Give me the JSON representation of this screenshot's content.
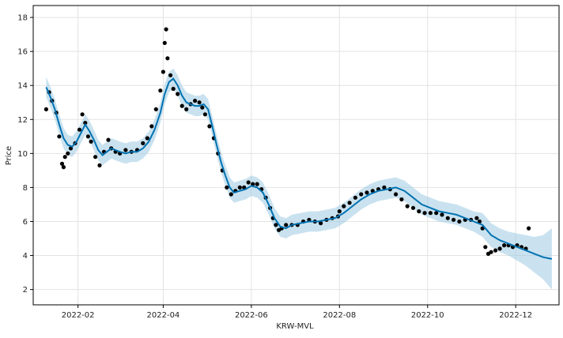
{
  "chart_data": {
    "type": "scatter",
    "title": "",
    "xlabel": "KRW-MVL",
    "ylabel": "Price",
    "grid": true,
    "x_ticks": [
      "2022-02",
      "2022-04",
      "2022-06",
      "2022-08",
      "2022-10",
      "2022-12"
    ],
    "y_ticks": [
      2,
      4,
      6,
      8,
      10,
      12,
      14,
      16,
      18
    ],
    "xlim": [
      "2022-01-01",
      "2022-12-31"
    ],
    "ylim": [
      1.1,
      18.7
    ],
    "colors": {
      "observed": "#000000",
      "forecast": "#0072B2",
      "interval": "#9ecae1",
      "grid": "#e3e3e3",
      "frame": "#000000"
    },
    "series": [
      {
        "kind": "observed-points",
        "x": [
          "2022-01-10",
          "2022-01-12",
          "2022-01-14",
          "2022-01-17",
          "2022-01-19",
          "2022-01-21",
          "2022-01-22",
          "2022-01-23",
          "2022-01-25",
          "2022-01-27",
          "2022-01-30",
          "2022-02-02",
          "2022-02-04",
          "2022-02-06",
          "2022-02-08",
          "2022-02-10",
          "2022-02-13",
          "2022-02-16",
          "2022-02-19",
          "2022-02-22",
          "2022-02-24",
          "2022-02-27",
          "2022-03-02",
          "2022-03-06",
          "2022-03-10",
          "2022-03-14",
          "2022-03-18",
          "2022-03-21",
          "2022-03-24",
          "2022-03-27",
          "2022-03-30",
          "2022-04-01",
          "2022-04-02",
          "2022-04-03",
          "2022-04-04",
          "2022-04-06",
          "2022-04-08",
          "2022-04-11",
          "2022-04-14",
          "2022-04-17",
          "2022-04-20",
          "2022-04-23",
          "2022-04-26",
          "2022-04-28",
          "2022-04-30",
          "2022-05-03",
          "2022-05-06",
          "2022-05-09",
          "2022-05-12",
          "2022-05-15",
          "2022-05-18",
          "2022-05-21",
          "2022-05-24",
          "2022-05-27",
          "2022-05-30",
          "2022-06-02",
          "2022-06-05",
          "2022-06-08",
          "2022-06-11",
          "2022-06-14",
          "2022-06-16",
          "2022-06-18",
          "2022-06-20",
          "2022-06-22",
          "2022-06-25",
          "2022-06-29",
          "2022-07-03",
          "2022-07-07",
          "2022-07-11",
          "2022-07-15",
          "2022-07-19",
          "2022-07-23",
          "2022-07-27",
          "2022-07-31",
          "2022-08-01",
          "2022-08-04",
          "2022-08-08",
          "2022-08-12",
          "2022-08-16",
          "2022-08-20",
          "2022-08-24",
          "2022-08-28",
          "2022-09-01",
          "2022-09-05",
          "2022-09-09",
          "2022-09-13",
          "2022-09-17",
          "2022-09-21",
          "2022-09-25",
          "2022-09-29",
          "2022-10-03",
          "2022-10-07",
          "2022-10-11",
          "2022-10-15",
          "2022-10-19",
          "2022-10-23",
          "2022-10-27",
          "2022-10-31",
          "2022-11-04",
          "2022-11-06",
          "2022-11-08",
          "2022-11-10",
          "2022-11-12",
          "2022-11-14",
          "2022-11-17",
          "2022-11-20",
          "2022-11-23",
          "2022-11-26",
          "2022-11-29",
          "2022-12-02",
          "2022-12-05",
          "2022-12-08",
          "2022-12-10"
        ],
        "y": [
          12.6,
          13.6,
          13.1,
          12.4,
          11.0,
          9.4,
          9.2,
          9.8,
          10.0,
          10.3,
          10.6,
          11.4,
          12.3,
          11.8,
          11.0,
          10.7,
          9.8,
          9.3,
          10.1,
          10.8,
          10.3,
          10.1,
          10.0,
          10.2,
          10.1,
          10.2,
          10.6,
          10.9,
          11.6,
          12.6,
          13.7,
          14.8,
          16.5,
          17.3,
          15.6,
          14.6,
          13.8,
          13.5,
          12.8,
          12.6,
          12.9,
          13.1,
          13.0,
          12.7,
          12.3,
          11.6,
          10.9,
          10.0,
          9.0,
          8.0,
          7.6,
          7.8,
          8.0,
          8.0,
          8.3,
          8.2,
          8.2,
          7.9,
          7.4,
          6.8,
          6.2,
          5.8,
          5.5,
          5.6,
          5.8,
          5.8,
          5.8,
          6.0,
          6.1,
          6.0,
          5.9,
          6.1,
          6.2,
          6.3,
          6.6,
          6.9,
          7.1,
          7.4,
          7.6,
          7.7,
          7.8,
          7.9,
          8.0,
          7.9,
          7.6,
          7.3,
          6.9,
          6.8,
          6.6,
          6.5,
          6.5,
          6.5,
          6.4,
          6.2,
          6.1,
          6.0,
          6.1,
          6.1,
          6.2,
          6.0,
          5.6,
          4.5,
          4.1,
          4.2,
          4.3,
          4.4,
          4.6,
          4.6,
          4.5,
          4.6,
          4.5,
          4.4,
          5.6
        ]
      },
      {
        "kind": "forecast-line",
        "x": [
          "2022-01-10",
          "2022-01-13",
          "2022-01-16",
          "2022-01-19",
          "2022-01-22",
          "2022-01-25",
          "2022-01-28",
          "2022-01-31",
          "2022-02-03",
          "2022-02-06",
          "2022-02-09",
          "2022-02-12",
          "2022-02-15",
          "2022-02-18",
          "2022-02-21",
          "2022-02-24",
          "2022-02-27",
          "2022-03-02",
          "2022-03-06",
          "2022-03-10",
          "2022-03-14",
          "2022-03-18",
          "2022-03-22",
          "2022-03-26",
          "2022-03-30",
          "2022-04-02",
          "2022-04-05",
          "2022-04-08",
          "2022-04-11",
          "2022-04-14",
          "2022-04-17",
          "2022-04-20",
          "2022-04-23",
          "2022-04-26",
          "2022-04-29",
          "2022-05-02",
          "2022-05-05",
          "2022-05-08",
          "2022-05-11",
          "2022-05-14",
          "2022-05-17",
          "2022-05-20",
          "2022-05-24",
          "2022-05-28",
          "2022-06-01",
          "2022-06-05",
          "2022-06-09",
          "2022-06-13",
          "2022-06-17",
          "2022-06-21",
          "2022-06-25",
          "2022-06-29",
          "2022-07-05",
          "2022-07-11",
          "2022-07-17",
          "2022-07-23",
          "2022-07-29",
          "2022-08-04",
          "2022-08-10",
          "2022-08-16",
          "2022-08-22",
          "2022-08-28",
          "2022-09-03",
          "2022-09-09",
          "2022-09-15",
          "2022-09-21",
          "2022-09-27",
          "2022-10-03",
          "2022-10-09",
          "2022-10-15",
          "2022-10-21",
          "2022-10-27",
          "2022-11-02",
          "2022-11-08",
          "2022-11-14",
          "2022-11-20",
          "2022-11-26",
          "2022-12-02",
          "2022-12-08",
          "2022-12-14",
          "2022-12-20",
          "2022-12-26"
        ],
        "y": [
          13.9,
          13.3,
          12.6,
          11.7,
          10.9,
          10.5,
          10.4,
          10.7,
          11.2,
          11.7,
          11.3,
          10.8,
          10.2,
          9.9,
          10.1,
          10.3,
          10.2,
          10.1,
          10.0,
          10.1,
          10.1,
          10.3,
          10.7,
          11.4,
          12.4,
          13.5,
          14.2,
          14.4,
          14.0,
          13.4,
          13.0,
          12.9,
          12.8,
          12.8,
          12.9,
          12.6,
          11.6,
          10.5,
          9.5,
          8.7,
          8.0,
          7.7,
          7.8,
          7.9,
          8.1,
          8.0,
          7.7,
          7.0,
          6.2,
          5.7,
          5.6,
          5.8,
          5.9,
          6.0,
          6.0,
          6.1,
          6.2,
          6.5,
          6.9,
          7.3,
          7.6,
          7.8,
          7.9,
          8.0,
          7.8,
          7.4,
          7.0,
          6.8,
          6.6,
          6.5,
          6.4,
          6.2,
          6.0,
          5.8,
          5.2,
          4.9,
          4.7,
          4.5,
          4.3,
          4.1,
          3.9,
          3.8
        ]
      },
      {
        "kind": "uncertainty-band",
        "x": [
          "2022-01-10",
          "2022-01-13",
          "2022-01-16",
          "2022-01-19",
          "2022-01-22",
          "2022-01-25",
          "2022-01-28",
          "2022-01-31",
          "2022-02-03",
          "2022-02-06",
          "2022-02-09",
          "2022-02-12",
          "2022-02-15",
          "2022-02-18",
          "2022-02-21",
          "2022-02-24",
          "2022-02-27",
          "2022-03-02",
          "2022-03-06",
          "2022-03-10",
          "2022-03-14",
          "2022-03-18",
          "2022-03-22",
          "2022-03-26",
          "2022-03-30",
          "2022-04-02",
          "2022-04-05",
          "2022-04-08",
          "2022-04-11",
          "2022-04-14",
          "2022-04-17",
          "2022-04-20",
          "2022-04-23",
          "2022-04-26",
          "2022-04-29",
          "2022-05-02",
          "2022-05-05",
          "2022-05-08",
          "2022-05-11",
          "2022-05-14",
          "2022-05-17",
          "2022-05-20",
          "2022-05-24",
          "2022-05-28",
          "2022-06-01",
          "2022-06-05",
          "2022-06-09",
          "2022-06-13",
          "2022-06-17",
          "2022-06-21",
          "2022-06-25",
          "2022-06-29",
          "2022-07-05",
          "2022-07-11",
          "2022-07-17",
          "2022-07-23",
          "2022-07-29",
          "2022-08-04",
          "2022-08-10",
          "2022-08-16",
          "2022-08-22",
          "2022-08-28",
          "2022-09-03",
          "2022-09-09",
          "2022-09-15",
          "2022-09-21",
          "2022-09-27",
          "2022-10-03",
          "2022-10-09",
          "2022-10-15",
          "2022-10-21",
          "2022-10-27",
          "2022-11-02",
          "2022-11-08",
          "2022-11-14",
          "2022-11-20",
          "2022-11-26",
          "2022-12-02",
          "2022-12-08",
          "2022-12-14",
          "2022-12-20",
          "2022-12-26"
        ],
        "lower": [
          13.3,
          12.7,
          12.0,
          11.1,
          10.3,
          9.9,
          9.8,
          10.1,
          10.6,
          11.1,
          10.7,
          10.2,
          9.6,
          9.3,
          9.5,
          9.7,
          9.6,
          9.5,
          9.4,
          9.5,
          9.5,
          9.7,
          10.1,
          10.8,
          11.8,
          12.9,
          13.6,
          13.8,
          13.4,
          12.8,
          12.4,
          12.3,
          12.2,
          12.2,
          12.3,
          12.0,
          11.0,
          9.9,
          8.9,
          8.1,
          7.4,
          7.1,
          7.2,
          7.3,
          7.5,
          7.4,
          7.1,
          6.4,
          5.6,
          5.1,
          5.0,
          5.2,
          5.3,
          5.4,
          5.4,
          5.5,
          5.6,
          5.9,
          6.3,
          6.7,
          7.0,
          7.2,
          7.3,
          7.4,
          7.2,
          6.8,
          6.4,
          6.2,
          6.0,
          5.9,
          5.8,
          5.6,
          5.4,
          5.1,
          4.5,
          4.2,
          4.0,
          3.7,
          3.4,
          3.0,
          2.6,
          2.0
        ],
        "upper": [
          14.5,
          13.9,
          13.2,
          12.3,
          11.5,
          11.1,
          11.0,
          11.3,
          11.8,
          12.3,
          11.9,
          11.4,
          10.8,
          10.5,
          10.7,
          10.9,
          10.8,
          10.7,
          10.6,
          10.7,
          10.7,
          10.9,
          11.3,
          12.0,
          13.0,
          14.1,
          14.8,
          15.0,
          14.6,
          14.0,
          13.6,
          13.5,
          13.4,
          13.4,
          13.5,
          13.2,
          12.2,
          11.1,
          10.1,
          9.3,
          8.6,
          8.3,
          8.4,
          8.5,
          8.7,
          8.6,
          8.3,
          7.6,
          6.8,
          6.3,
          6.2,
          6.4,
          6.5,
          6.6,
          6.6,
          6.7,
          6.8,
          7.1,
          7.5,
          7.9,
          8.2,
          8.4,
          8.5,
          8.6,
          8.4,
          8.0,
          7.6,
          7.4,
          7.2,
          7.1,
          7.0,
          6.8,
          6.6,
          6.5,
          5.9,
          5.6,
          5.4,
          5.3,
          5.2,
          5.1,
          5.2,
          5.6
        ]
      }
    ]
  }
}
